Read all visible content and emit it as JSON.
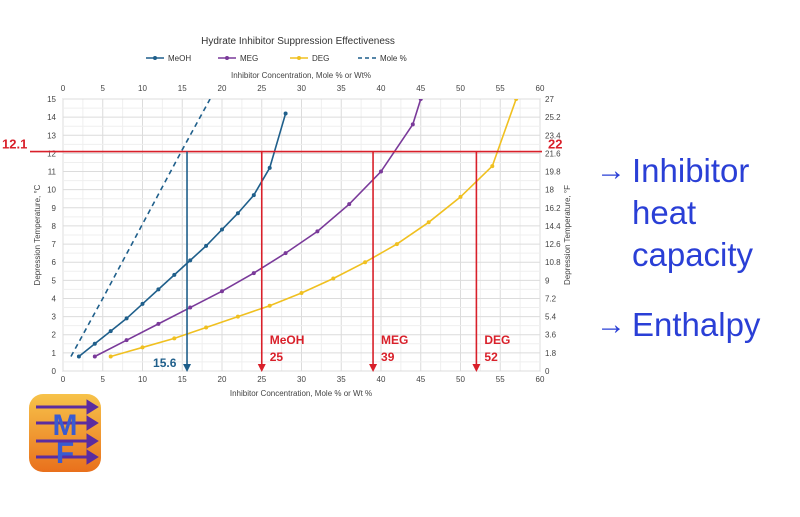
{
  "chart_data": {
    "type": "line",
    "title": "Hydrate Inhibitor Suppression Effectiveness",
    "xlabel": "Inhibitor Concentration, Mole % or Wt %",
    "xlabel_top": "Inhibitor Concentration, Mole % or Wt%",
    "ylabel": "Depression Temperature, °C",
    "ylabel_right": "Depression Temperature, °F",
    "xlim": [
      0,
      60
    ],
    "ylim": [
      0,
      15
    ],
    "x_ticks": [
      "0",
      "5",
      "10",
      "15",
      "20",
      "25",
      "30",
      "35",
      "40",
      "45",
      "50",
      "55",
      "60"
    ],
    "y_ticks": [
      "0",
      "1",
      "2",
      "3",
      "4",
      "5",
      "6",
      "7",
      "8",
      "9",
      "10",
      "11",
      "12",
      "13",
      "14",
      "15"
    ],
    "y_right_ticks": [
      "0",
      "1.8",
      "3.6",
      "5.4",
      "7.2",
      "9",
      "10.8",
      "12.6",
      "14.4",
      "16.2",
      "18",
      "19.8",
      "21.6",
      "23.4",
      "25.2",
      "27"
    ],
    "grid": true,
    "legend_position": "top",
    "series": [
      {
        "name": "MeOH",
        "color": "#1f5f8b",
        "style": "solid-dot",
        "x": [
          2,
          4,
          6,
          8,
          10,
          12,
          14,
          16,
          18,
          20,
          22,
          24,
          26,
          28
        ],
        "y": [
          0.8,
          1.5,
          2.2,
          2.9,
          3.7,
          4.5,
          5.3,
          6.1,
          6.9,
          7.8,
          8.7,
          9.7,
          11.2,
          14.2
        ]
      },
      {
        "name": "MEG",
        "color": "#7a3a9a",
        "style": "solid-dot",
        "x": [
          4,
          8,
          12,
          16,
          20,
          24,
          28,
          32,
          36,
          40,
          44,
          45
        ],
        "y": [
          0.8,
          1.7,
          2.6,
          3.5,
          4.4,
          5.4,
          6.5,
          7.7,
          9.2,
          11.0,
          13.6,
          15
        ]
      },
      {
        "name": "DEG",
        "color": "#f0c020",
        "style": "solid-dot",
        "x": [
          6,
          10,
          14,
          18,
          22,
          26,
          30,
          34,
          38,
          42,
          46,
          50,
          54,
          57
        ],
        "y": [
          0.8,
          1.3,
          1.8,
          2.4,
          3.0,
          3.6,
          4.3,
          5.1,
          6.0,
          7.0,
          8.2,
          9.6,
          11.3,
          15
        ]
      },
      {
        "name": "Mole %",
        "color": "#1f5f8b",
        "style": "dashed",
        "x": [
          1,
          5,
          10,
          15,
          18.5
        ],
        "y": [
          0.8,
          4.0,
          8.1,
          12.2,
          15
        ]
      }
    ],
    "annotations": {
      "hline_y": 12.1,
      "hline_left_label": "12.1",
      "hline_right_label": "22",
      "drops": [
        {
          "x": 15.6,
          "label": "15.6",
          "color": "#1f5f8b"
        },
        {
          "x": 25,
          "label_name": "MeOH",
          "label_value": "25",
          "color": "#d9202a"
        },
        {
          "x": 39,
          "label_name": "MEG",
          "label_value": "39",
          "color": "#d9202a"
        },
        {
          "x": 52,
          "label_name": "DEG",
          "label_value": "52",
          "color": "#d9202a"
        }
      ]
    }
  },
  "bullets": [
    {
      "arrow": "→",
      "text": "Inhibitor heat capacity"
    },
    {
      "arrow": "→",
      "text": "Enthalpy"
    }
  ],
  "logo": {
    "letters": "MF"
  },
  "colors": {
    "accent_red": "#d9202a",
    "bullet_blue": "#2a3fd6"
  }
}
